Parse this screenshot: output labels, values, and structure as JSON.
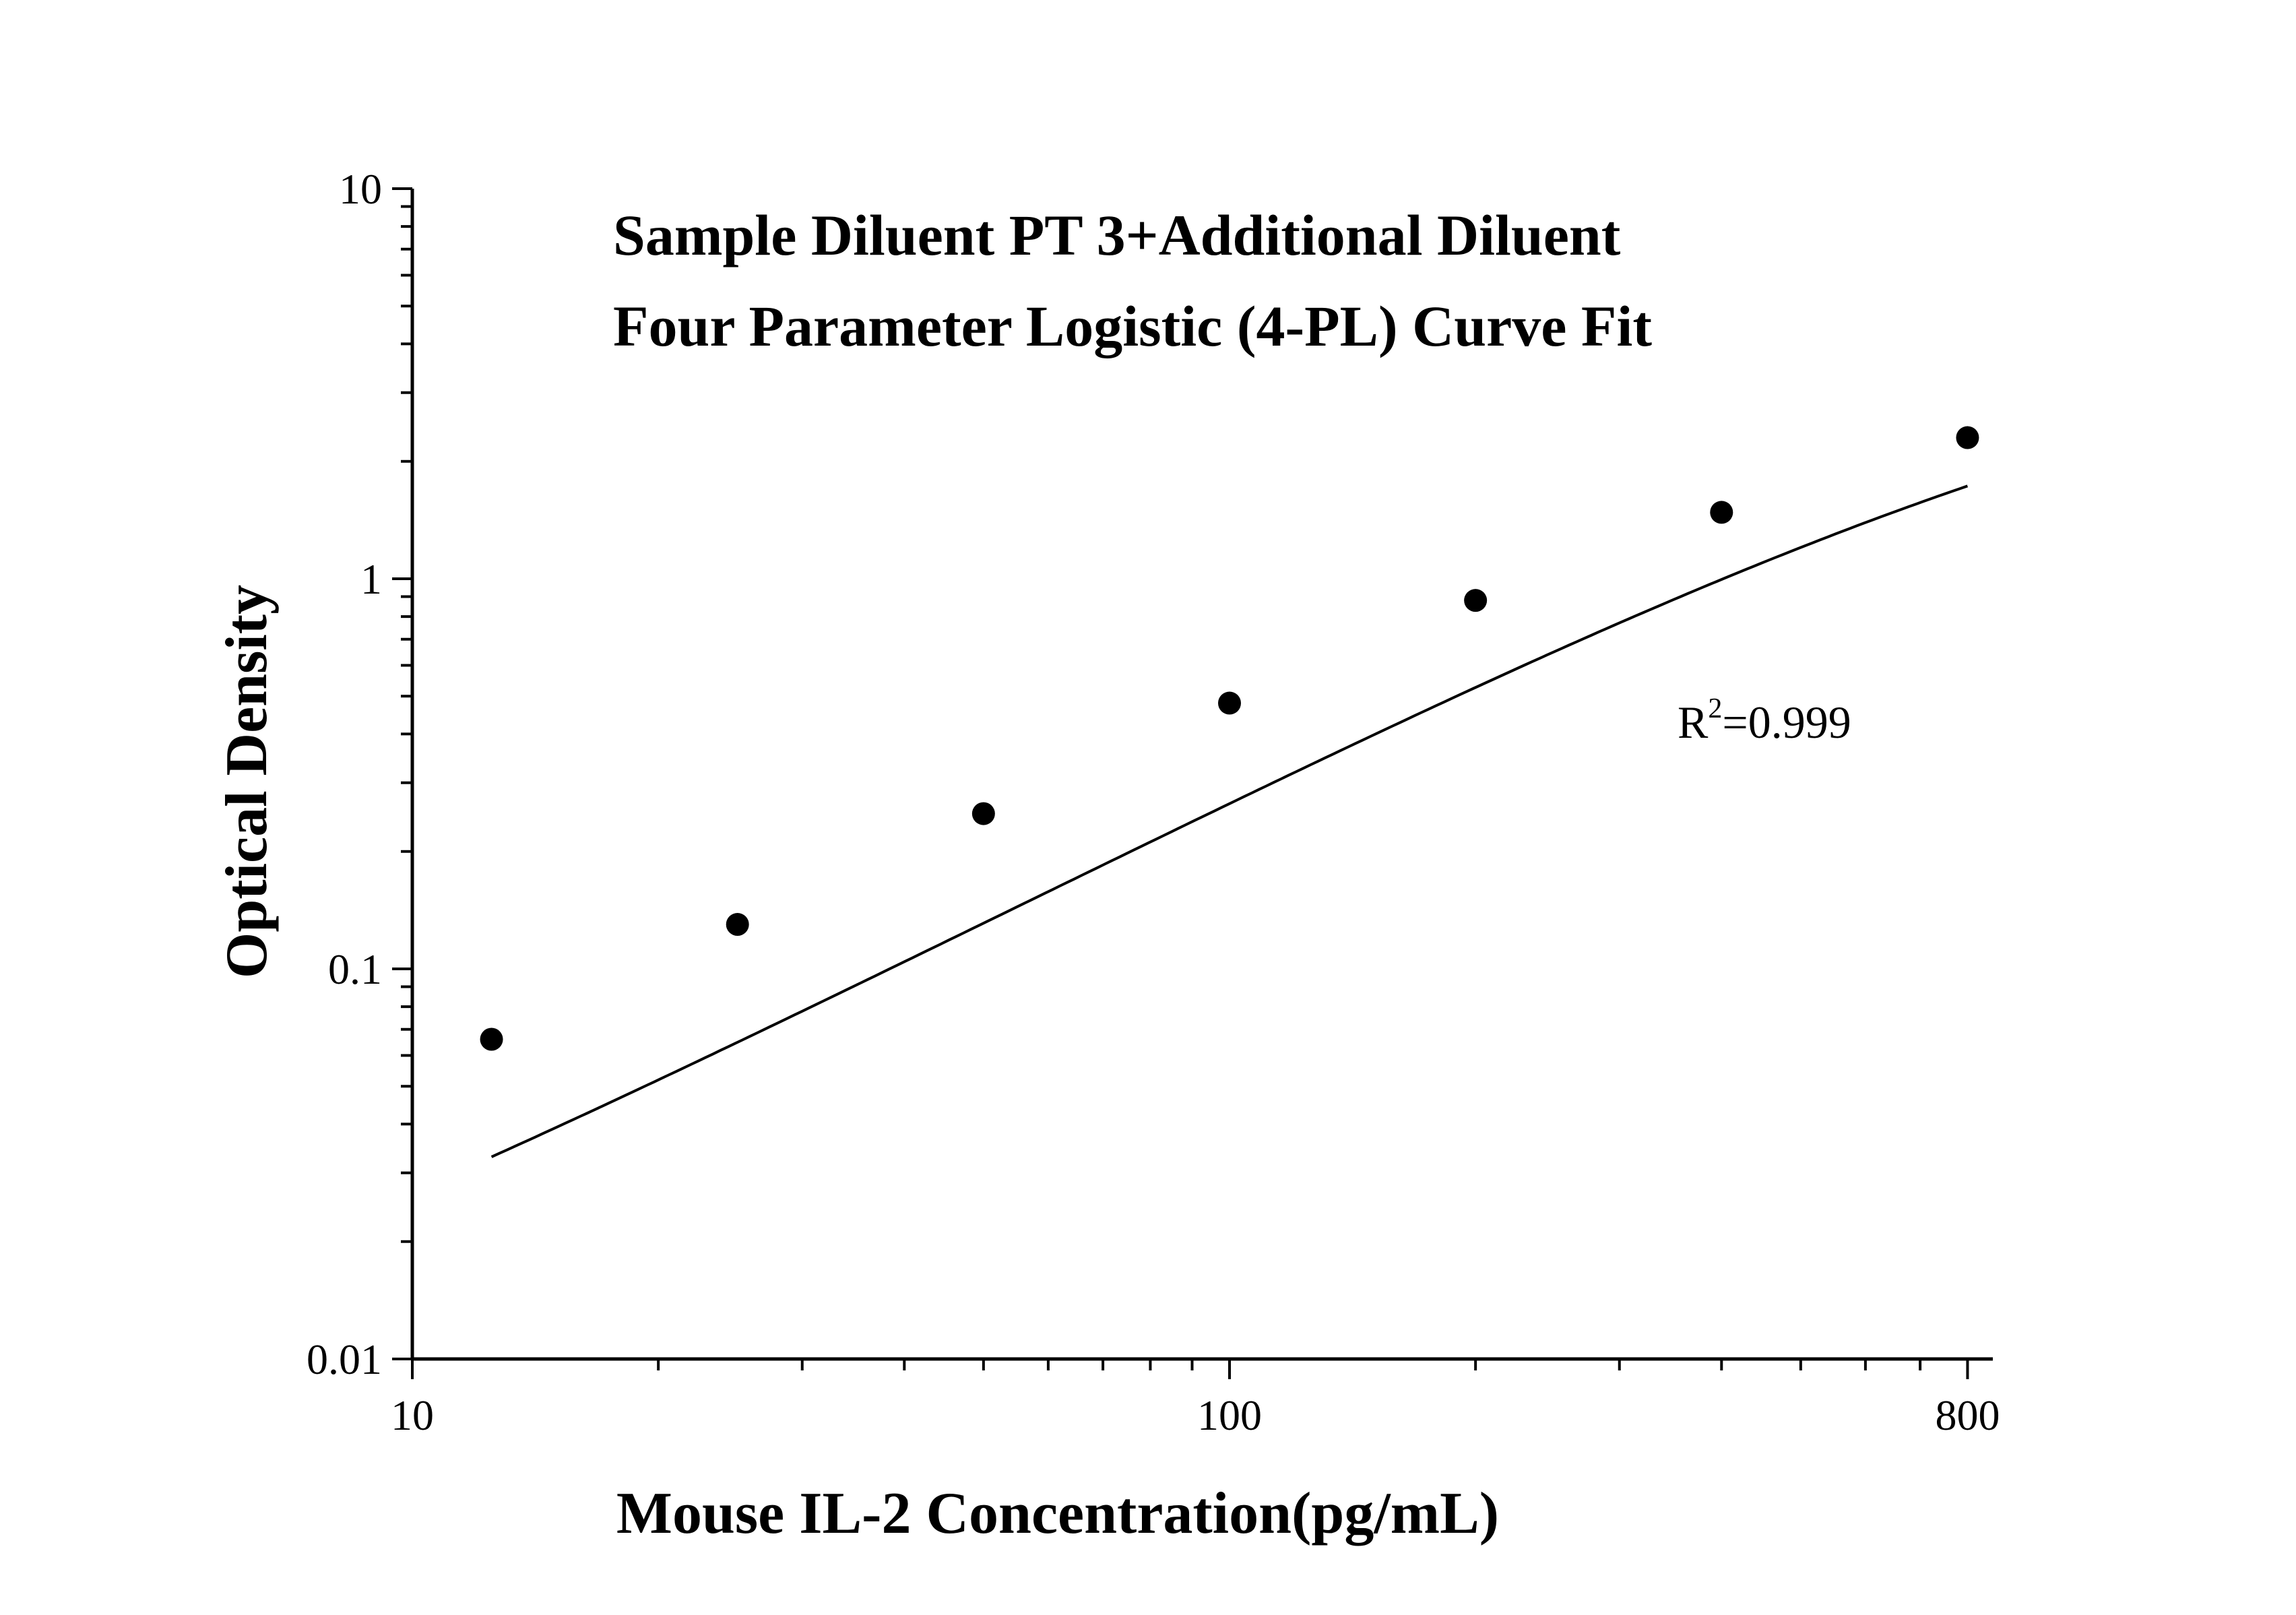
{
  "chart_data": {
    "type": "scatter",
    "title_lines": [
      "Sample Diluent PT 3+Additional Diluent",
      "Four Parameter Logistic (4-PL) Curve Fit"
    ],
    "xlabel": "Mouse IL-2 Concentration(pg/mL)",
    "ylabel": "Optical Density",
    "x_scale": "log",
    "y_scale": "log",
    "xlim": [
      10,
      850
    ],
    "ylim": [
      0.01,
      10
    ],
    "x_tick_labels": [
      {
        "value": 10,
        "label": "10"
      },
      {
        "value": 100,
        "label": "100"
      },
      {
        "value": 800,
        "label": "800"
      }
    ],
    "y_tick_labels": [
      {
        "value": 0.01,
        "label": "0.01"
      },
      {
        "value": 0.1,
        "label": "0.1"
      },
      {
        "value": 1,
        "label": "1"
      },
      {
        "value": 10,
        "label": "10"
      }
    ],
    "grid": false,
    "annotation": {
      "prefix": "R",
      "superscript": "2",
      "suffix": "=0.999"
    },
    "series": [
      {
        "points": [
          {
            "x": 12.5,
            "y": 0.066
          },
          {
            "x": 25,
            "y": 0.13
          },
          {
            "x": 50,
            "y": 0.25
          },
          {
            "x": 100,
            "y": 0.48
          },
          {
            "x": 200,
            "y": 0.88
          },
          {
            "x": 400,
            "y": 1.48
          },
          {
            "x": 800,
            "y": 2.3
          }
        ],
        "color": "#000000"
      }
    ],
    "fit_curve": {
      "model": "4PL",
      "A": 0.004,
      "B": 1.08,
      "C": 1500,
      "D": 5.13,
      "x_range": [
        12.5,
        800
      ]
    }
  }
}
